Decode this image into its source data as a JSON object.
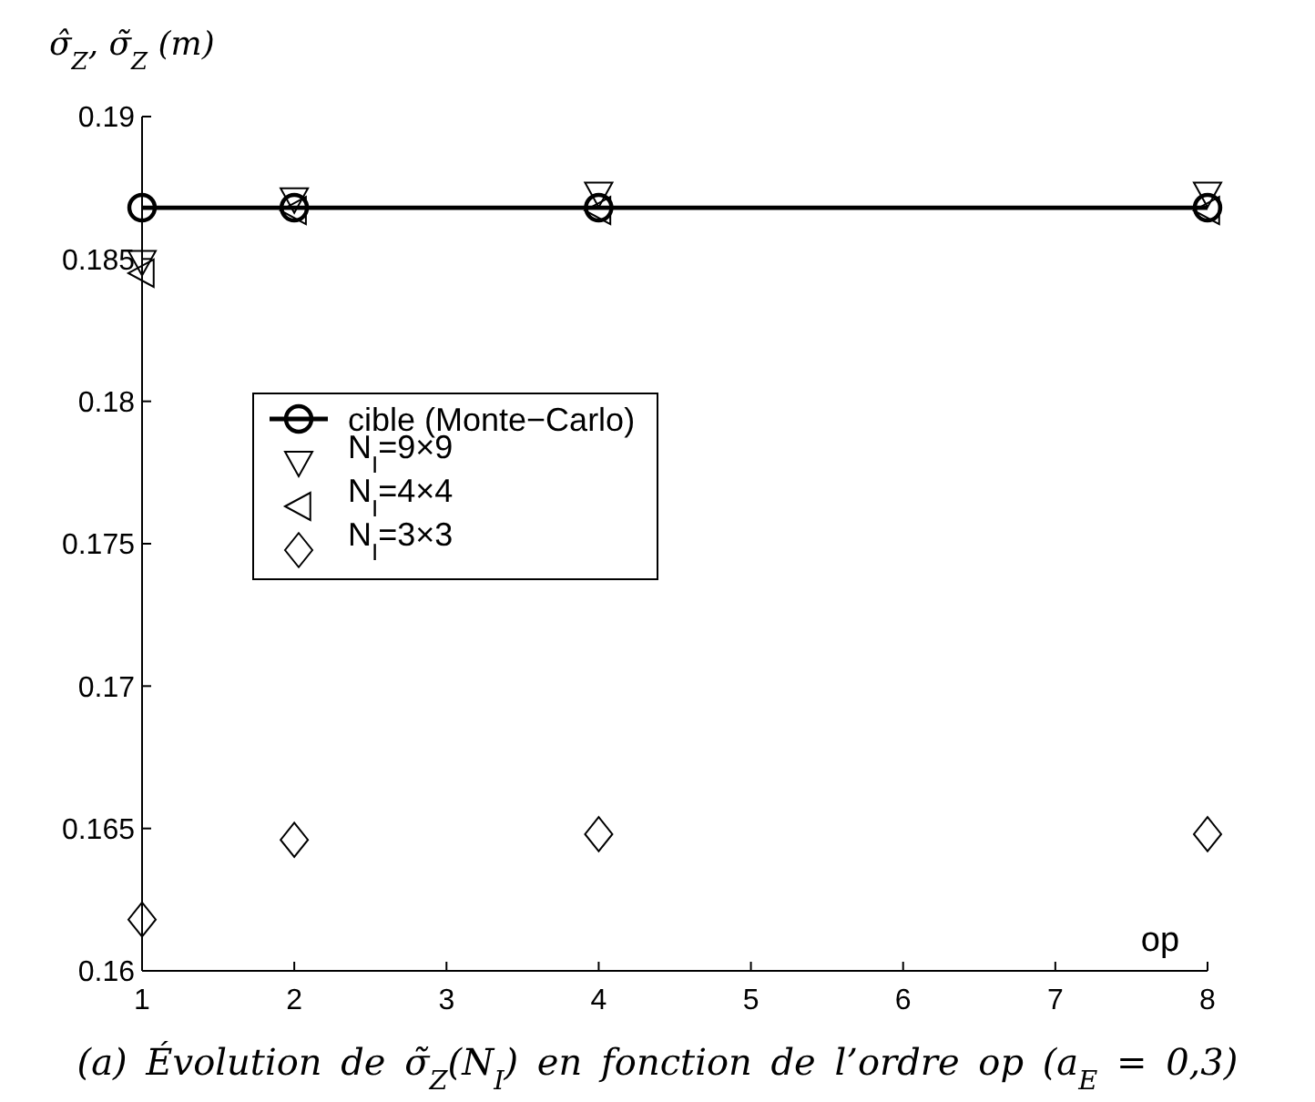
{
  "chart_data": {
    "type": "scatter",
    "ylabel": "σ̂$_{Z}$, σ̃$_{Z}$ (m)",
    "xlabel": "op",
    "annotations": [
      "(a) Évolution de σ̃$_{Z}$(N$_{I}$) en fonction de l’ordre op (a$_{E}$ = 0,3)"
    ],
    "x": [
      1,
      2,
      4,
      8
    ],
    "xlim": [
      1,
      8
    ],
    "xticks": [
      1,
      2,
      3,
      4,
      5,
      6,
      7,
      8
    ],
    "ylim": [
      0.16,
      0.19
    ],
    "yticks": [
      0.16,
      0.165,
      0.17,
      0.175,
      0.18,
      0.185,
      0.19
    ],
    "legend": "left",
    "series": [
      {
        "name": "cible (Monte−Carlo)",
        "type": "line",
        "color": "#000000",
        "marker": "circle",
        "line_style": "solid",
        "values": [
          0.1868,
          0.1868,
          0.1868,
          0.1868
        ]
      },
      {
        "name": "N$_{I}$=9×9",
        "color": "#000000",
        "marker": "triangle-down",
        "values": [
          0.1849,
          0.1871,
          0.1873,
          0.1873
        ]
      },
      {
        "name": "N$_{I}$=4×4",
        "color": "#000000",
        "marker": "triangle-left",
        "values": [
          0.1845,
          0.1867,
          0.1867,
          0.1867
        ]
      },
      {
        "name": "N$_{I}$=3×3",
        "color": "#000000",
        "marker": "diamond",
        "values": [
          0.1618,
          0.1646,
          0.1648,
          0.1648
        ]
      }
    ]
  }
}
